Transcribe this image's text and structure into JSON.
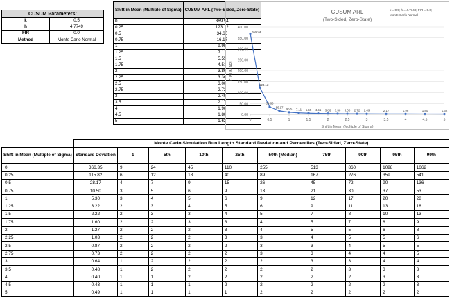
{
  "params": {
    "title": "CUSUM Parameters:",
    "rows": [
      {
        "label": "k",
        "value": "0.5"
      },
      {
        "label": "h",
        "value": "4.7749"
      },
      {
        "label": "FIR",
        "value": "0.0"
      },
      {
        "label": "Method",
        "value": "Monte Carlo Normal"
      }
    ]
  },
  "arl_table": {
    "col1_header": "Shift in Mean (Multiple of Sigma)",
    "col2_header": "CUSUM ARL (Two-Sided, Zero-State)",
    "rows": [
      {
        "shift": "0",
        "arl": "369.94"
      },
      {
        "shift": "0.25",
        "arl": "123.12"
      },
      {
        "shift": "0.5",
        "arl": "34.66"
      },
      {
        "shift": "0.75",
        "arl": "16.17"
      },
      {
        "shift": "1",
        "arl": "9.95"
      },
      {
        "shift": "1.25",
        "arl": "7.11"
      },
      {
        "shift": "1.5",
        "arl": "5.55"
      },
      {
        "shift": "1.75",
        "arl": "4.51"
      },
      {
        "shift": "2",
        "arl": "3.86"
      },
      {
        "shift": "2.25",
        "arl": "3.36"
      },
      {
        "shift": "2.5",
        "arl": "3.00"
      },
      {
        "shift": "2.75",
        "arl": "2.72"
      },
      {
        "shift": "3",
        "arl": "2.49"
      },
      {
        "shift": "3.5",
        "arl": "2.17"
      },
      {
        "shift": "4",
        "arl": "1.96"
      },
      {
        "shift": "4.5",
        "arl": "1.80"
      },
      {
        "shift": "5",
        "arl": "1.62"
      }
    ]
  },
  "chart_data": {
    "type": "scatter",
    "title": "CUSUM ARL",
    "subtitle": "(Two-Sided, Zero-State)",
    "annotation_line1": "k = 0.5; h = 4.7749; FIR = 0.0;",
    "annotation_line2": "Monte Carlo Normal",
    "xlabel": "Shift in Mean (Multiple of Sigma)",
    "ylabel": "CUSUM ARL",
    "x": [
      0,
      0.25,
      0.5,
      0.75,
      1,
      1.25,
      1.5,
      1.75,
      2,
      2.25,
      2.5,
      2.75,
      3,
      3.5,
      4,
      4.5,
      5
    ],
    "y": [
      369.94,
      123.12,
      34.66,
      16.17,
      9.95,
      7.11,
      5.55,
      4.51,
      3.86,
      3.36,
      3.0,
      2.72,
      2.49,
      2.17,
      1.96,
      1.8,
      1.62
    ],
    "point_labels": [
      "369.94",
      "123.12",
      "34.66",
      "16.17",
      "9.95",
      "7.11",
      "5.55",
      "4.51",
      "3.86",
      "3.36",
      "3.00",
      "2.72",
      "2.49",
      "2.17",
      "1.96",
      "1.80",
      "1.62"
    ],
    "xlim": [
      0,
      5
    ],
    "ylim": [
      0,
      400
    ],
    "xticks": [
      0,
      0.5,
      1,
      1.5,
      2,
      2.5,
      3,
      3.5,
      4,
      4.5,
      5
    ],
    "xtick_labels": [
      "0",
      "0.5",
      "1",
      "1.5",
      "2",
      "2.5",
      "3",
      "3.5",
      "4",
      "4.5",
      "5"
    ],
    "yticks": [
      0,
      50,
      100,
      150,
      200,
      250,
      300,
      350,
      400
    ],
    "ytick_labels": [
      "0.00",
      "50.00",
      "100.00",
      "150.00",
      "200.00",
      "250.00",
      "300.00",
      "350.00",
      "400.00"
    ],
    "grid": "horizontal",
    "line_color": "#4472c4"
  },
  "mc_table": {
    "band_title": "Monte Carlo Simulation Run Length Standard Deviation and Percentiles (Two-Sided, Zero-State)",
    "headers": [
      "Shift in Mean (Multiple of Sigma)",
      "Standard Deviation",
      "1",
      "5th",
      "10th",
      "25th",
      "50th (Median)",
      "75th",
      "90th",
      "95th",
      "99th"
    ],
    "rows": [
      [
        "0",
        "366.35",
        "9",
        "24",
        "45",
        "110",
        "255",
        "513",
        "860",
        "1098",
        "1662"
      ],
      [
        "0.25",
        "115.82",
        "6",
        "12",
        "18",
        "40",
        "89",
        "167",
        "276",
        "359",
        "541"
      ],
      [
        "0.5",
        "28.17",
        "4",
        "7",
        "9",
        "15",
        "26",
        "45",
        "72",
        "90",
        "136"
      ],
      [
        "0.75",
        "10.50",
        "3",
        "5",
        "6",
        "9",
        "13",
        "21",
        "30",
        "37",
        "53"
      ],
      [
        "1",
        "5.30",
        "3",
        "4",
        "5",
        "6",
        "9",
        "12",
        "17",
        "20",
        "28"
      ],
      [
        "1.25",
        "3.22",
        "2",
        "3",
        "4",
        "5",
        "6",
        "9",
        "11",
        "13",
        "18"
      ],
      [
        "1.5",
        "2.22",
        "2",
        "3",
        "3",
        "4",
        "5",
        "7",
        "8",
        "10",
        "13"
      ],
      [
        "1.75",
        "1.60",
        "2",
        "2",
        "3",
        "3",
        "4",
        "5",
        "7",
        "8",
        "9"
      ],
      [
        "2",
        "1.27",
        "2",
        "2",
        "2",
        "3",
        "4",
        "5",
        "5",
        "6",
        "8"
      ],
      [
        "2.25",
        "1.03",
        "2",
        "2",
        "2",
        "3",
        "3",
        "4",
        "5",
        "5",
        "6"
      ],
      [
        "2.5",
        "0.87",
        "2",
        "2",
        "2",
        "2",
        "3",
        "3",
        "4",
        "5",
        "5"
      ],
      [
        "2.75",
        "0.73",
        "2",
        "2",
        "2",
        "2",
        "3",
        "3",
        "4",
        "4",
        "5"
      ],
      [
        "3",
        "0.64",
        "1",
        "2",
        "2",
        "2",
        "2",
        "3",
        "3",
        "4",
        "4"
      ],
      [
        "3.5",
        "0.48",
        "1",
        "2",
        "2",
        "2",
        "2",
        "2",
        "3",
        "3",
        "3"
      ],
      [
        "4",
        "0.40",
        "1",
        "1",
        "2",
        "2",
        "2",
        "2",
        "2",
        "3",
        "3"
      ],
      [
        "4.5",
        "0.43",
        "1",
        "1",
        "1",
        "2",
        "2",
        "2",
        "2",
        "2",
        "3"
      ],
      [
        "5",
        "0.49",
        "1",
        "1",
        "1",
        "1",
        "2",
        "2",
        "2",
        "2",
        "2"
      ]
    ]
  }
}
